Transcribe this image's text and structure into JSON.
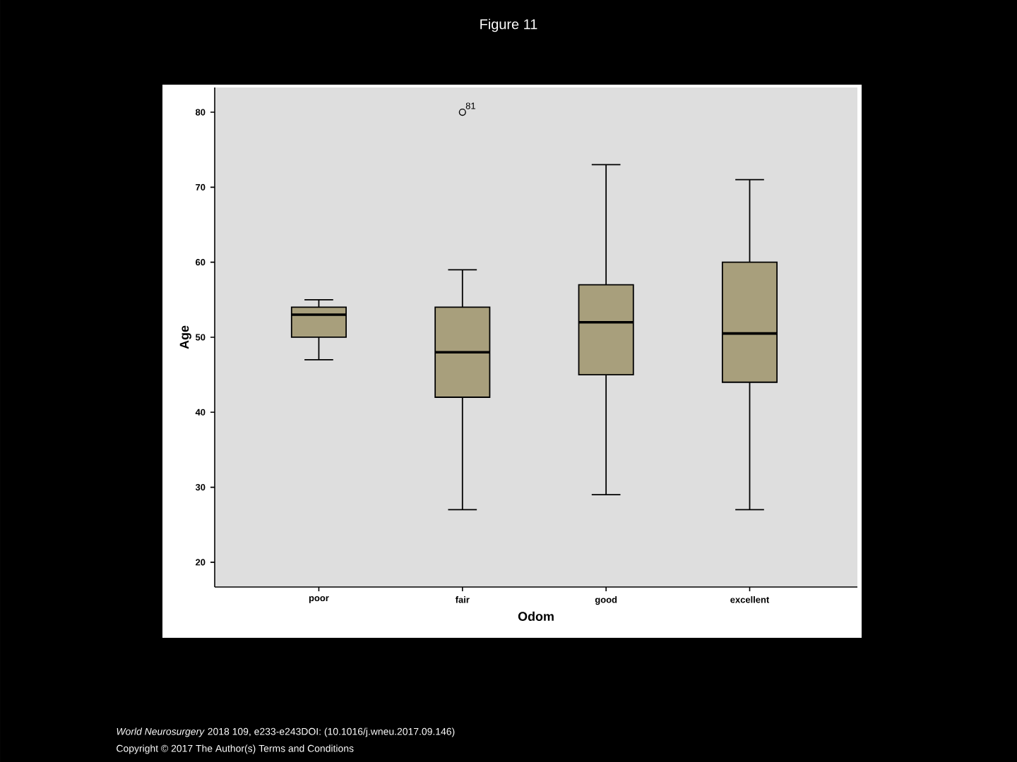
{
  "chart_data": {
    "type": "box",
    "title": "Figure 11",
    "xlabel": "Odom",
    "ylabel": "Age",
    "categories": [
      "poor",
      "fair",
      "good",
      "excellent"
    ],
    "color": "#a89f7c",
    "boxes": [
      {
        "low": 47,
        "q1": 50,
        "median": 53,
        "q3": 54,
        "high": 55
      },
      {
        "low": 27,
        "q1": 42,
        "median": 48,
        "q3": 54,
        "high": 59,
        "outliers": [
          80
        ]
      },
      {
        "low": 29,
        "q1": 45,
        "median": 52,
        "q3": 57,
        "high": 73
      },
      {
        "low": 27,
        "q1": 44,
        "median": 50.5,
        "q3": 60,
        "high": 71
      }
    ],
    "ylim": [
      16.7,
      83.3
    ],
    "yticks": [
      20,
      30,
      40,
      50,
      60,
      70,
      80
    ],
    "grid": false,
    "annotations": [
      "81",
      "*World Neurosurgery* 2018 109, e233-e243DOI: (10.1016/j.wneu.2017.09.146)",
      "Copyright © 2017 The Author(s) Terms and Conditions"
    ]
  }
}
